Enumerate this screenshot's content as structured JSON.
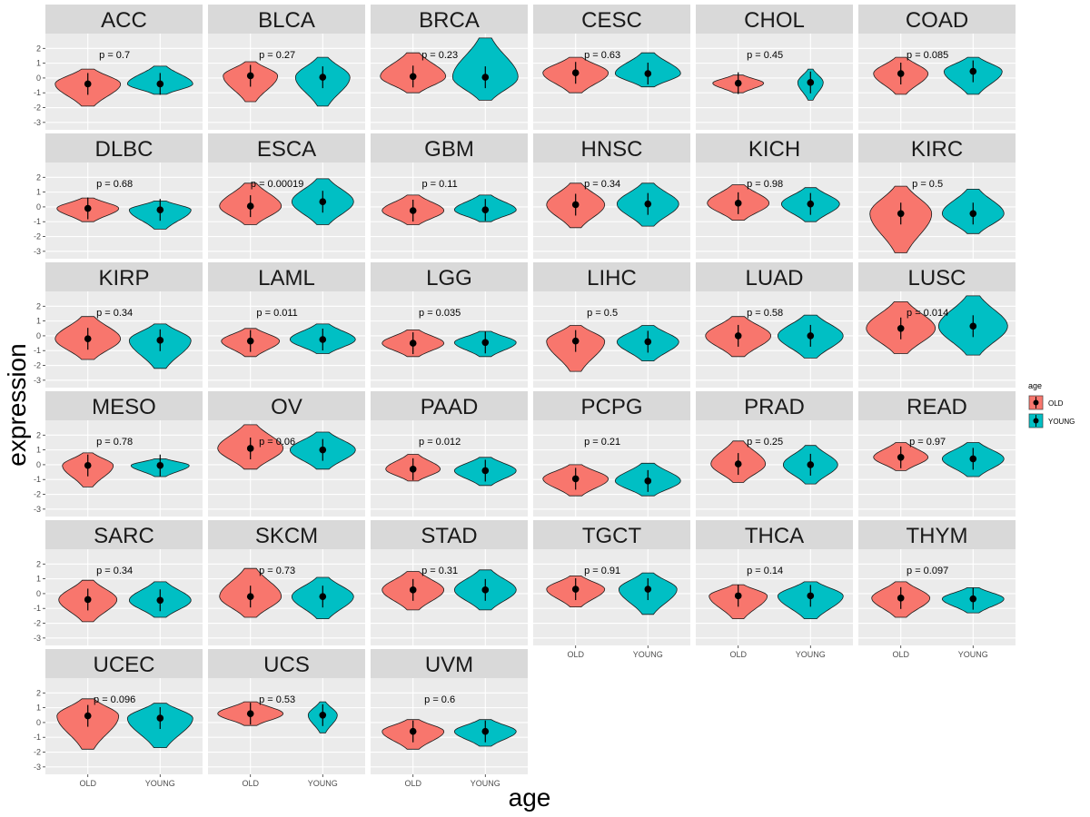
{
  "chart_data": {
    "type": "violin",
    "xlabel": "age",
    "ylabel": "expression",
    "ylim": [
      -3.5,
      3
    ],
    "yticks": [
      -3,
      -2,
      -1,
      0,
      1,
      2
    ],
    "ytick_labels": [
      "-3",
      "-2",
      "-1",
      "0",
      "1",
      "2"
    ],
    "groups": [
      "OLD",
      "YOUNG"
    ],
    "colors": {
      "OLD": "#F8766D",
      "YOUNG": "#00BFC4",
      "strip": "#D9D9D9",
      "panel": "#EBEBEB"
    },
    "legend": {
      "title": "age",
      "entries": [
        "OLD",
        "YOUNG"
      ],
      "position": "right"
    },
    "facets": [
      {
        "name": "ACC",
        "p": "p = 0.7",
        "OLD": {
          "median": -0.4,
          "lo": -1.9,
          "hi": 0.6,
          "width": 0.9
        },
        "YOUNG": {
          "median": -0.4,
          "lo": -1.1,
          "hi": 0.8,
          "width": 0.9
        }
      },
      {
        "name": "BLCA",
        "p": "p = 0.27",
        "OLD": {
          "median": 0.15,
          "lo": -1.6,
          "hi": 1.1,
          "width": 0.75
        },
        "YOUNG": {
          "median": 0.05,
          "lo": -1.9,
          "hi": 1.4,
          "width": 0.75
        }
      },
      {
        "name": "BRCA",
        "p": "p = 0.23",
        "OLD": {
          "median": 0.1,
          "lo": -1.0,
          "hi": 1.7,
          "width": 0.9
        },
        "YOUNG": {
          "median": 0.05,
          "lo": -1.5,
          "hi": 2.7,
          "width": 0.9
        }
      },
      {
        "name": "CESC",
        "p": "p = 0.63",
        "OLD": {
          "median": 0.35,
          "lo": -1.0,
          "hi": 1.4,
          "width": 0.9
        },
        "YOUNG": {
          "median": 0.3,
          "lo": -0.6,
          "hi": 1.7,
          "width": 0.9
        }
      },
      {
        "name": "CHOL",
        "p": "p = 0.45",
        "OLD": {
          "median": -0.35,
          "lo": -1.0,
          "hi": 0.2,
          "width": 0.7
        },
        "YOUNG": {
          "median": -0.3,
          "lo": -1.5,
          "hi": 0.6,
          "width": 0.35
        }
      },
      {
        "name": "COAD",
        "p": "p = 0.085",
        "OLD": {
          "median": 0.3,
          "lo": -1.1,
          "hi": 1.4,
          "width": 0.75
        },
        "YOUNG": {
          "median": 0.45,
          "lo": -1.1,
          "hi": 1.4,
          "width": 0.8
        }
      },
      {
        "name": "DLBC",
        "p": "p = 0.68",
        "OLD": {
          "median": -0.1,
          "lo": -1.0,
          "hi": 0.6,
          "width": 0.85
        },
        "YOUNG": {
          "median": -0.2,
          "lo": -1.5,
          "hi": 0.4,
          "width": 0.85
        }
      },
      {
        "name": "ESCA",
        "p": "p = 0.00019",
        "OLD": {
          "median": 0.05,
          "lo": -1.2,
          "hi": 1.6,
          "width": 0.85
        },
        "YOUNG": {
          "median": 0.35,
          "lo": -1.2,
          "hi": 1.9,
          "width": 0.85
        }
      },
      {
        "name": "GBM",
        "p": "p = 0.11",
        "OLD": {
          "median": -0.25,
          "lo": -1.2,
          "hi": 0.8,
          "width": 0.85
        },
        "YOUNG": {
          "median": -0.2,
          "lo": -1.0,
          "hi": 0.8,
          "width": 0.85
        }
      },
      {
        "name": "HNSC",
        "p": "p = 0.34",
        "OLD": {
          "median": 0.15,
          "lo": -1.4,
          "hi": 1.6,
          "width": 0.8
        },
        "YOUNG": {
          "median": 0.2,
          "lo": -1.3,
          "hi": 1.6,
          "width": 0.85
        }
      },
      {
        "name": "KICH",
        "p": "p = 0.98",
        "OLD": {
          "median": 0.25,
          "lo": -0.9,
          "hi": 1.5,
          "width": 0.85
        },
        "YOUNG": {
          "median": 0.2,
          "lo": -1.0,
          "hi": 1.3,
          "width": 0.8
        }
      },
      {
        "name": "KIRC",
        "p": "p = 0.5",
        "OLD": {
          "median": -0.45,
          "lo": -3.1,
          "hi": 1.4,
          "width": 0.85
        },
        "YOUNG": {
          "median": -0.45,
          "lo": -1.8,
          "hi": 1.2,
          "width": 0.85
        }
      },
      {
        "name": "KIRP",
        "p": "p = 0.34",
        "OLD": {
          "median": -0.2,
          "lo": -1.6,
          "hi": 1.3,
          "width": 0.9
        },
        "YOUNG": {
          "median": -0.3,
          "lo": -2.2,
          "hi": 0.8,
          "width": 0.85
        }
      },
      {
        "name": "LAML",
        "p": "p = 0.011",
        "OLD": {
          "median": -0.35,
          "lo": -1.4,
          "hi": 0.5,
          "width": 0.8
        },
        "YOUNG": {
          "median": -0.25,
          "lo": -1.2,
          "hi": 0.8,
          "width": 0.9
        }
      },
      {
        "name": "LGG",
        "p": "p = 0.035",
        "OLD": {
          "median": -0.5,
          "lo": -1.4,
          "hi": 0.4,
          "width": 0.85
        },
        "YOUNG": {
          "median": -0.45,
          "lo": -1.4,
          "hi": 0.3,
          "width": 0.85
        }
      },
      {
        "name": "LIHC",
        "p": "p = 0.5",
        "OLD": {
          "median": -0.35,
          "lo": -2.4,
          "hi": 0.7,
          "width": 0.8
        },
        "YOUNG": {
          "median": -0.4,
          "lo": -1.7,
          "hi": 0.7,
          "width": 0.85
        }
      },
      {
        "name": "LUAD",
        "p": "p = 0.58",
        "OLD": {
          "median": 0.0,
          "lo": -1.4,
          "hi": 1.3,
          "width": 0.9
        },
        "YOUNG": {
          "median": 0.0,
          "lo": -1.5,
          "hi": 1.4,
          "width": 0.9
        }
      },
      {
        "name": "LUSC",
        "p": "p = 0.014",
        "OLD": {
          "median": 0.5,
          "lo": -1.2,
          "hi": 2.3,
          "width": 0.95
        },
        "YOUNG": {
          "median": 0.65,
          "lo": -1.3,
          "hi": 2.7,
          "width": 0.95
        }
      },
      {
        "name": "MESO",
        "p": "p = 0.78",
        "OLD": {
          "median": -0.05,
          "lo": -1.5,
          "hi": 0.8,
          "width": 0.7
        },
        "YOUNG": {
          "median": -0.05,
          "lo": -0.8,
          "hi": 0.4,
          "width": 0.8
        }
      },
      {
        "name": "OV",
        "p": "p = 0.06",
        "OLD": {
          "median": 1.1,
          "lo": -0.3,
          "hi": 2.7,
          "width": 0.9
        },
        "YOUNG": {
          "median": 1.0,
          "lo": -0.3,
          "hi": 2.2,
          "width": 0.9
        }
      },
      {
        "name": "PAAD",
        "p": "p = 0.012",
        "OLD": {
          "median": -0.3,
          "lo": -1.1,
          "hi": 0.7,
          "width": 0.75
        },
        "YOUNG": {
          "median": -0.4,
          "lo": -1.4,
          "hi": 0.5,
          "width": 0.85
        }
      },
      {
        "name": "PCPG",
        "p": "p = 0.21",
        "OLD": {
          "median": -0.95,
          "lo": -2.1,
          "hi": 0.0,
          "width": 0.9
        },
        "YOUNG": {
          "median": -1.1,
          "lo": -2.1,
          "hi": 0.1,
          "width": 0.9
        }
      },
      {
        "name": "PRAD",
        "p": "p = 0.25",
        "OLD": {
          "median": 0.05,
          "lo": -1.2,
          "hi": 1.6,
          "width": 0.75
        },
        "YOUNG": {
          "median": 0.0,
          "lo": -1.3,
          "hi": 1.3,
          "width": 0.75
        }
      },
      {
        "name": "READ",
        "p": "p = 0.97",
        "OLD": {
          "median": 0.5,
          "lo": -0.4,
          "hi": 1.5,
          "width": 0.75
        },
        "YOUNG": {
          "median": 0.4,
          "lo": -0.8,
          "hi": 1.5,
          "width": 0.85
        }
      },
      {
        "name": "SARC",
        "p": "p = 0.34",
        "OLD": {
          "median": -0.4,
          "lo": -1.9,
          "hi": 0.9,
          "width": 0.8
        },
        "YOUNG": {
          "median": -0.45,
          "lo": -1.6,
          "hi": 0.8,
          "width": 0.85
        }
      },
      {
        "name": "SKCM",
        "p": "p = 0.73",
        "OLD": {
          "median": -0.2,
          "lo": -1.6,
          "hi": 1.7,
          "width": 0.85
        },
        "YOUNG": {
          "median": -0.2,
          "lo": -1.7,
          "hi": 1.1,
          "width": 0.85
        }
      },
      {
        "name": "STAD",
        "p": "p = 0.31",
        "OLD": {
          "median": 0.25,
          "lo": -1.1,
          "hi": 1.5,
          "width": 0.85
        },
        "YOUNG": {
          "median": 0.25,
          "lo": -1.1,
          "hi": 1.6,
          "width": 0.85
        }
      },
      {
        "name": "TGCT",
        "p": "p = 0.91",
        "OLD": {
          "median": 0.3,
          "lo": -0.9,
          "hi": 1.2,
          "width": 0.8
        },
        "YOUNG": {
          "median": 0.3,
          "lo": -1.4,
          "hi": 1.4,
          "width": 0.8
        }
      },
      {
        "name": "THCA",
        "p": "p = 0.14",
        "OLD": {
          "median": -0.15,
          "lo": -1.7,
          "hi": 0.6,
          "width": 0.8
        },
        "YOUNG": {
          "median": -0.15,
          "lo": -1.7,
          "hi": 0.8,
          "width": 0.9
        }
      },
      {
        "name": "THYM",
        "p": "p = 0.097",
        "OLD": {
          "median": -0.3,
          "lo": -1.6,
          "hi": 0.8,
          "width": 0.8
        },
        "YOUNG": {
          "median": -0.35,
          "lo": -1.3,
          "hi": 0.4,
          "width": 0.85
        }
      },
      {
        "name": "UCEC",
        "p": "p = 0.096",
        "OLD": {
          "median": 0.45,
          "lo": -1.8,
          "hi": 1.6,
          "width": 0.85
        },
        "YOUNG": {
          "median": 0.3,
          "lo": -1.7,
          "hi": 1.3,
          "width": 0.9
        }
      },
      {
        "name": "UCS",
        "p": "p = 0.53",
        "OLD": {
          "median": 0.6,
          "lo": -0.2,
          "hi": 1.4,
          "width": 0.9
        },
        "YOUNG": {
          "median": 0.5,
          "lo": -0.7,
          "hi": 1.4,
          "width": 0.4
        }
      },
      {
        "name": "UVM",
        "p": "p = 0.6",
        "OLD": {
          "median": -0.6,
          "lo": -1.8,
          "hi": 0.2,
          "width": 0.85
        },
        "YOUNG": {
          "median": -0.6,
          "lo": -1.6,
          "hi": 0.2,
          "width": 0.85
        }
      }
    ]
  }
}
